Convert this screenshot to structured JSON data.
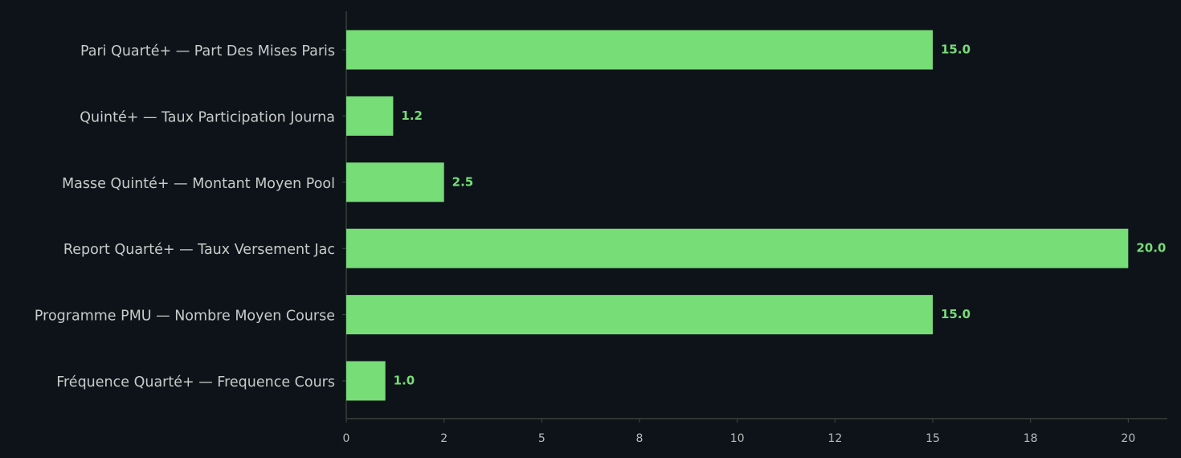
{
  "chart_data": {
    "type": "barh",
    "categories": [
      "Pari Quarté+ — Part Des Mises Paris",
      "Quinté+ — Taux Participation Journa",
      "Masse Quinté+ — Montant Moyen Pool",
      "Report Quarté+ — Taux Versement Jac",
      "Programme PMU — Nombre Moyen Course",
      "Fréquence Quarté+ — Frequence Cours"
    ],
    "values": [
      15,
      1.2,
      2.5,
      20,
      15,
      1
    ],
    "value_labels": [
      "15.0",
      "1.2",
      "2.5",
      "20.0",
      "15.0",
      "1.0"
    ],
    "color": "#77dd77",
    "xlim": [
      0,
      21
    ],
    "xticks": [
      0,
      {
        "value": 2.5,
        "label": "2"
      },
      5,
      {
        "value": 7.5,
        "label": "8"
      },
      10,
      {
        "value": 12.5,
        "label": "12"
      },
      15,
      {
        "value": 17.5,
        "label": "18"
      },
      20
    ]
  }
}
